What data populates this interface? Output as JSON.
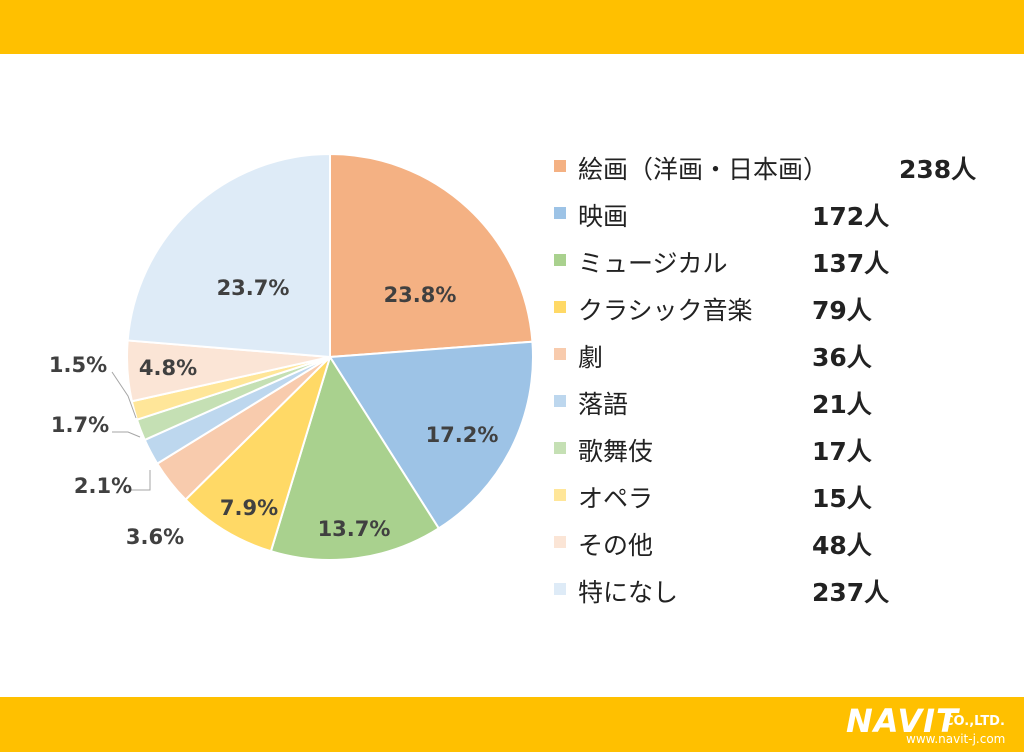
{
  "colors": {
    "band": "#FFC000",
    "logo_text": "#FFFFFF"
  },
  "logo": {
    "name": "NAVIT",
    "suffix": "CO.,LTD.",
    "url": "www.navit-j.com"
  },
  "chart_data": {
    "type": "pie",
    "unit": "人",
    "slices": [
      {
        "label": "絵画（洋画・日本画）",
        "count": 238,
        "count_label": "238人",
        "percent": 23.8,
        "percent_label": "23.8%",
        "color": "#F4B183"
      },
      {
        "label": "映画",
        "count": 172,
        "count_label": "172人",
        "percent": 17.2,
        "percent_label": "17.2%",
        "color": "#9DC3E6"
      },
      {
        "label": "ミュージカル",
        "count": 137,
        "count_label": "137人",
        "percent": 13.7,
        "percent_label": "13.7%",
        "color": "#A9D18E"
      },
      {
        "label": "クラシック音楽",
        "count": 79,
        "count_label": "79人",
        "percent": 7.9,
        "percent_label": "7.9%",
        "color": "#FFD966"
      },
      {
        "label": "劇",
        "count": 36,
        "count_label": "36人",
        "percent": 3.6,
        "percent_label": "3.6%",
        "color": "#F8CBAD"
      },
      {
        "label": "落語",
        "count": 21,
        "count_label": "21人",
        "percent": 2.1,
        "percent_label": "2.1%",
        "color": "#BDD7EE"
      },
      {
        "label": "歌舞伎",
        "count": 17,
        "count_label": "17人",
        "percent": 1.7,
        "percent_label": "1.7%",
        "color": "#C5E0B4"
      },
      {
        "label": "オペラ",
        "count": 15,
        "count_label": "15人",
        "percent": 1.5,
        "percent_label": "1.5%",
        "color": "#FFE699"
      },
      {
        "label": "その他",
        "count": 48,
        "count_label": "48人",
        "percent": 4.8,
        "percent_label": "4.8%",
        "color": "#FBE5D6"
      },
      {
        "label": "特になし",
        "count": 237,
        "count_label": "237人",
        "percent": 23.7,
        "percent_label": "23.7%",
        "color": "#DEEBF7"
      }
    ]
  }
}
